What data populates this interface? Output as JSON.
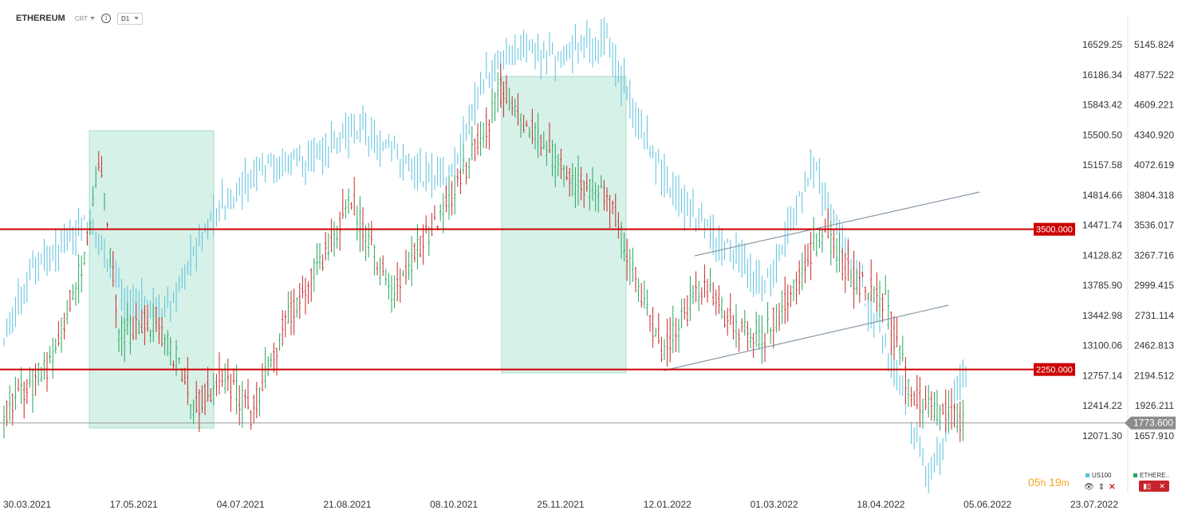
{
  "header": {
    "symbol": "ETHEREUM",
    "chart_type": "CRT",
    "info_icon": "info-icon",
    "timeframe": "D1"
  },
  "axes": {
    "us100_ticks": [
      "16529.25",
      "16186.34",
      "15843.42",
      "15500.50",
      "15157.58",
      "14814.66",
      "14471.74",
      "14128.82",
      "13785.90",
      "13442.98",
      "13100.06",
      "12757.14",
      "12414.22",
      "12071.30"
    ],
    "eth_ticks": [
      "5145.824",
      "4877.522",
      "4609.221",
      "4340.920",
      "4072.619",
      "3804.318",
      "3536.017",
      "3267.716",
      "2999.415",
      "2731.114",
      "2462.813",
      "2194.512",
      "1926.211",
      "1657.910"
    ],
    "dates": [
      "30.03.2021",
      "17.05.2021",
      "04.07.2021",
      "21.08.2021",
      "08.10.2021",
      "25.11.2021",
      "12.01.2022",
      "01.03.2022",
      "18.04.2022",
      "05.06.2022",
      "23.07.2022"
    ]
  },
  "levels": [
    {
      "label": "3500.000",
      "value": 3500,
      "color": "#cc0000"
    },
    {
      "label": "2250.000",
      "value": 2250,
      "color": "#cc0000"
    }
  ],
  "current_price": {
    "label": "1773.600",
    "value": 1773.6
  },
  "timer": {
    "hours": "05",
    "h": "h",
    "minutes": "19",
    "m": "m"
  },
  "legend": [
    {
      "name": "US100",
      "color": "#5bc0de"
    },
    {
      "name": "ETHERE..",
      "color": "#26a65b"
    }
  ],
  "colors": {
    "up": "#26a65b",
    "down": "#c62828",
    "us100": "#5bc0de",
    "zone": "#d6f1e8",
    "level": "#cc0000"
  },
  "chart_data": {
    "type": "ohlc",
    "series": [
      {
        "name": "US100",
        "color": "#5bc0de",
        "x": [
          "30.03.2021",
          "17.05.2021",
          "04.07.2021",
          "21.08.2021",
          "08.10.2021",
          "25.11.2021",
          "12.01.2022",
          "01.03.2022",
          "18.04.2022",
          "05.06.2022"
        ],
        "values": [
          13100,
          13300,
          14470,
          15500,
          14900,
          16350,
          14600,
          13700,
          13100,
          12400
        ]
      },
      {
        "name": "ETHERE..",
        "color": "#26a65b",
        "x": [
          "30.03.2021",
          "17.05.2021",
          "04.07.2021",
          "21.08.2021",
          "08.10.2021",
          "25.11.2021",
          "12.01.2022",
          "01.03.2022",
          "18.04.2022",
          "05.06.2022"
        ],
        "values": [
          1850,
          3500,
          2150,
          3200,
          3600,
          4300,
          3150,
          2900,
          2950,
          1780
        ]
      }
    ],
    "ylim_us100": [
      12071.3,
      16529.25
    ],
    "ylim_eth": [
      1657.91,
      5145.824
    ],
    "grid": false
  }
}
